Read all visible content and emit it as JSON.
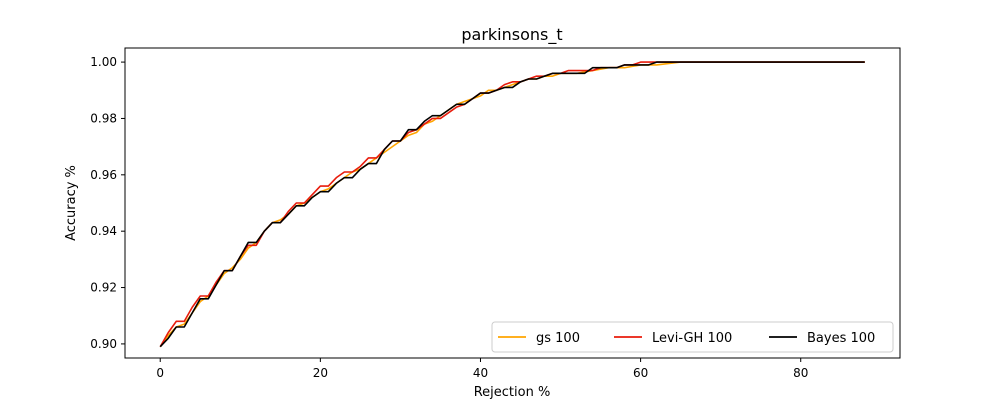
{
  "chart_data": {
    "type": "line",
    "title": "parkinsons_t",
    "xlabel": "Rejection %",
    "ylabel": "Accuracy %",
    "xlim": [
      -4.4,
      92.4
    ],
    "ylim": [
      0.895,
      1.005
    ],
    "xticks": [
      0,
      20,
      40,
      60,
      80
    ],
    "yticks": [
      0.9,
      0.92,
      0.94,
      0.96,
      0.98,
      1.0
    ],
    "xtick_labels": [
      "0",
      "20",
      "40",
      "60",
      "80"
    ],
    "ytick_labels": [
      "0.90",
      "0.92",
      "0.94",
      "0.96",
      "0.98",
      "1.00"
    ],
    "grid": false,
    "legend": {
      "placement": "lower-right",
      "columns": 3
    },
    "series": [
      {
        "name": "gs 100",
        "color": "#ffa500",
        "points": [
          [
            0,
            0.899
          ],
          [
            1,
            0.903
          ],
          [
            2,
            0.906
          ],
          [
            3,
            0.907
          ],
          [
            4,
            0.911
          ],
          [
            5,
            0.915
          ],
          [
            6,
            0.917
          ],
          [
            7,
            0.921
          ],
          [
            8,
            0.925
          ],
          [
            9,
            0.927
          ],
          [
            10,
            0.93
          ],
          [
            11,
            0.934
          ],
          [
            12,
            0.936
          ],
          [
            13,
            0.94
          ],
          [
            14,
            0.943
          ],
          [
            15,
            0.944
          ],
          [
            16,
            0.946
          ],
          [
            17,
            0.949
          ],
          [
            18,
            0.95
          ],
          [
            19,
            0.952
          ],
          [
            20,
            0.954
          ],
          [
            21,
            0.955
          ],
          [
            22,
            0.957
          ],
          [
            23,
            0.959
          ],
          [
            24,
            0.961
          ],
          [
            25,
            0.962
          ],
          [
            26,
            0.964
          ],
          [
            27,
            0.966
          ],
          [
            28,
            0.968
          ],
          [
            29,
            0.97
          ],
          [
            30,
            0.972
          ],
          [
            31,
            0.974
          ],
          [
            32,
            0.975
          ],
          [
            33,
            0.978
          ],
          [
            34,
            0.979
          ],
          [
            35,
            0.981
          ],
          [
            36,
            0.983
          ],
          [
            37,
            0.985
          ],
          [
            38,
            0.986
          ],
          [
            39,
            0.987
          ],
          [
            40,
            0.988
          ],
          [
            41,
            0.99
          ],
          [
            42,
            0.99
          ],
          [
            43,
            0.991
          ],
          [
            44,
            0.992
          ],
          [
            45,
            0.993
          ],
          [
            46,
            0.994
          ],
          [
            47,
            0.994
          ],
          [
            48,
            0.995
          ],
          [
            49,
            0.995
          ],
          [
            50,
            0.996
          ],
          [
            52,
            0.996
          ],
          [
            54,
            0.997
          ],
          [
            56,
            0.998
          ],
          [
            58,
            0.998
          ],
          [
            60,
            0.999
          ],
          [
            62,
            0.999
          ],
          [
            65,
            1.0
          ],
          [
            88,
            1.0
          ]
        ]
      },
      {
        "name": "Levi-GH 100",
        "color": "#e81c0c",
        "points": [
          [
            0,
            0.899
          ],
          [
            1,
            0.904
          ],
          [
            2,
            0.908
          ],
          [
            3,
            0.908
          ],
          [
            4,
            0.913
          ],
          [
            5,
            0.917
          ],
          [
            6,
            0.917
          ],
          [
            7,
            0.922
          ],
          [
            8,
            0.926
          ],
          [
            9,
            0.926
          ],
          [
            10,
            0.931
          ],
          [
            11,
            0.935
          ],
          [
            12,
            0.935
          ],
          [
            13,
            0.94
          ],
          [
            14,
            0.943
          ],
          [
            15,
            0.943
          ],
          [
            16,
            0.947
          ],
          [
            17,
            0.95
          ],
          [
            18,
            0.95
          ],
          [
            19,
            0.953
          ],
          [
            20,
            0.956
          ],
          [
            21,
            0.956
          ],
          [
            22,
            0.959
          ],
          [
            23,
            0.961
          ],
          [
            24,
            0.961
          ],
          [
            25,
            0.963
          ],
          [
            26,
            0.966
          ],
          [
            27,
            0.966
          ],
          [
            28,
            0.969
          ],
          [
            29,
            0.972
          ],
          [
            30,
            0.972
          ],
          [
            31,
            0.975
          ],
          [
            32,
            0.976
          ],
          [
            33,
            0.978
          ],
          [
            34,
            0.98
          ],
          [
            35,
            0.98
          ],
          [
            36,
            0.982
          ],
          [
            37,
            0.984
          ],
          [
            38,
            0.985
          ],
          [
            39,
            0.987
          ],
          [
            40,
            0.989
          ],
          [
            41,
            0.989
          ],
          [
            42,
            0.99
          ],
          [
            43,
            0.992
          ],
          [
            44,
            0.993
          ],
          [
            45,
            0.993
          ],
          [
            46,
            0.994
          ],
          [
            47,
            0.995
          ],
          [
            48,
            0.995
          ],
          [
            49,
            0.996
          ],
          [
            50,
            0.996
          ],
          [
            51,
            0.997
          ],
          [
            52,
            0.997
          ],
          [
            53,
            0.997
          ],
          [
            54,
            0.997
          ],
          [
            55,
            0.998
          ],
          [
            56,
            0.998
          ],
          [
            57,
            0.998
          ],
          [
            58,
            0.999
          ],
          [
            59,
            0.999
          ],
          [
            60,
            1.0
          ],
          [
            61,
            1.0
          ],
          [
            62,
            1.0
          ],
          [
            88,
            1.0
          ]
        ]
      },
      {
        "name": "Bayes 100",
        "color": "#000000",
        "points": [
          [
            0,
            0.899
          ],
          [
            1,
            0.902
          ],
          [
            2,
            0.906
          ],
          [
            3,
            0.906
          ],
          [
            4,
            0.911
          ],
          [
            5,
            0.916
          ],
          [
            6,
            0.916
          ],
          [
            7,
            0.921
          ],
          [
            8,
            0.926
          ],
          [
            9,
            0.926
          ],
          [
            10,
            0.931
          ],
          [
            11,
            0.936
          ],
          [
            12,
            0.936
          ],
          [
            13,
            0.94
          ],
          [
            14,
            0.943
          ],
          [
            15,
            0.943
          ],
          [
            16,
            0.946
          ],
          [
            17,
            0.949
          ],
          [
            18,
            0.949
          ],
          [
            19,
            0.952
          ],
          [
            20,
            0.954
          ],
          [
            21,
            0.954
          ],
          [
            22,
            0.957
          ],
          [
            23,
            0.959
          ],
          [
            24,
            0.959
          ],
          [
            25,
            0.962
          ],
          [
            26,
            0.964
          ],
          [
            27,
            0.964
          ],
          [
            28,
            0.969
          ],
          [
            29,
            0.972
          ],
          [
            30,
            0.972
          ],
          [
            31,
            0.976
          ],
          [
            32,
            0.976
          ],
          [
            33,
            0.979
          ],
          [
            34,
            0.981
          ],
          [
            35,
            0.981
          ],
          [
            36,
            0.983
          ],
          [
            37,
            0.985
          ],
          [
            38,
            0.985
          ],
          [
            39,
            0.987
          ],
          [
            40,
            0.989
          ],
          [
            41,
            0.989
          ],
          [
            42,
            0.99
          ],
          [
            43,
            0.991
          ],
          [
            44,
            0.991
          ],
          [
            45,
            0.993
          ],
          [
            46,
            0.994
          ],
          [
            47,
            0.994
          ],
          [
            48,
            0.995
          ],
          [
            49,
            0.996
          ],
          [
            50,
            0.996
          ],
          [
            51,
            0.996
          ],
          [
            52,
            0.996
          ],
          [
            53,
            0.996
          ],
          [
            54,
            0.998
          ],
          [
            55,
            0.998
          ],
          [
            56,
            0.998
          ],
          [
            57,
            0.998
          ],
          [
            58,
            0.999
          ],
          [
            59,
            0.999
          ],
          [
            60,
            0.999
          ],
          [
            61,
            0.999
          ],
          [
            62,
            1.0
          ],
          [
            88,
            1.0
          ]
        ]
      }
    ]
  }
}
